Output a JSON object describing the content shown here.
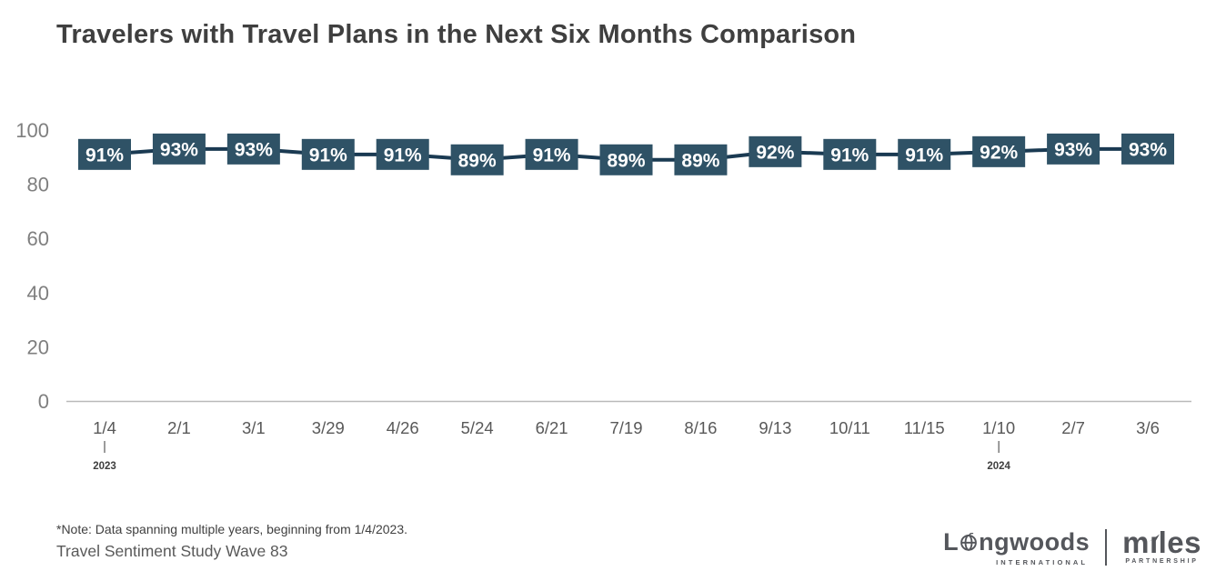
{
  "title": "Travelers with Travel Plans in the Next Six Months Comparison",
  "chart_data": {
    "type": "line",
    "title": "Travelers with Travel Plans in the Next Six Months Comparison",
    "categories": [
      "1/4",
      "2/1",
      "3/1",
      "3/29",
      "4/26",
      "5/24",
      "6/21",
      "7/19",
      "8/16",
      "9/13",
      "10/11",
      "11/15",
      "1/10",
      "2/7",
      "3/6"
    ],
    "values": [
      91,
      93,
      93,
      91,
      91,
      89,
      91,
      89,
      89,
      92,
      91,
      91,
      92,
      93,
      93
    ],
    "unit": "%",
    "ylim": [
      0,
      100
    ],
    "yticks": [
      0,
      20,
      40,
      60,
      80,
      100
    ],
    "grid": false,
    "legend": "none",
    "year_markers": [
      {
        "index": 0,
        "label": "2023"
      },
      {
        "index": 12,
        "label": "2024"
      }
    ],
    "line_color": "#1a3a52",
    "box_color": "#2f5266",
    "label_text_color": "#ffffff",
    "axis_line_color": "#b9b9b9",
    "ytick_color": "#7f7f7f",
    "xtick_color": "#595959"
  },
  "footer": {
    "note": "*Note: Data spanning multiple years, beginning from 1/4/2023.",
    "source": "Travel Sentiment Study Wave 83"
  },
  "logos": {
    "longwoods": {
      "prefix": "L",
      "suffix": "ngwoods",
      "subtext": "INTERNATIONAL"
    },
    "miles": {
      "prefix": "m",
      "i": "ı",
      "suffix": "les",
      "subtext": "PARTNERSHIP"
    }
  }
}
